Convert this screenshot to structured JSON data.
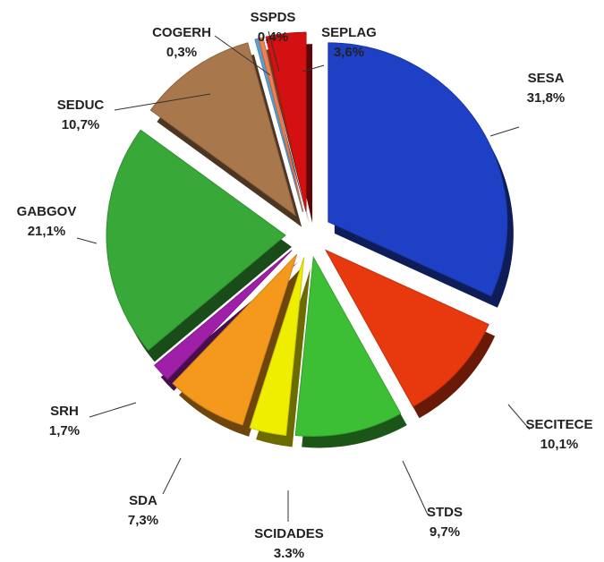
{
  "chart_data": {
    "type": "pie",
    "categories": [
      "SESA",
      "SECITECE",
      "STDS",
      "SCIDADES",
      "SDA",
      "SRH",
      "GABGOV",
      "SEDUC",
      "COGERH",
      "SSPDS",
      "SEPLAG"
    ],
    "values": [
      31.8,
      10.1,
      9.7,
      3.3,
      7.3,
      1.7,
      21.1,
      10.7,
      0.3,
      0.4,
      3.6
    ],
    "value_labels": [
      "31,8%",
      "10,1%",
      "9,7%",
      "3.3%",
      "7,3%",
      "1,7%",
      "21,1%",
      "10,7%",
      "0,3%",
      "0,4%",
      "3,6%"
    ],
    "colors": [
      "#1e40c4",
      "#e8390e",
      "#3dbf35",
      "#f0ee00",
      "#f5991c",
      "#a01fa8",
      "#38a838",
      "#a8774c",
      "#5a9fd0",
      "#f08050",
      "#d41010"
    ]
  }
}
